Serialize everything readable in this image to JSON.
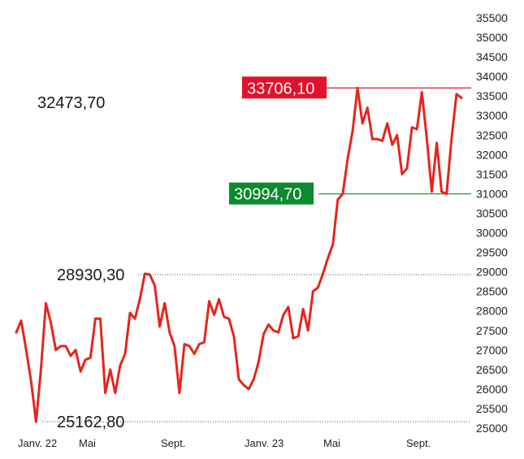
{
  "chart_data": {
    "type": "line",
    "title": "",
    "xlabel": "",
    "ylabel": "",
    "ylim": [
      25000,
      35500
    ],
    "y_ticks": [
      "35500",
      "35000",
      "34500",
      "34000",
      "33500",
      "33000",
      "32500",
      "32000",
      "31500",
      "31000",
      "30500",
      "30000",
      "29500",
      "29000",
      "28500",
      "28000",
      "27500",
      "27000",
      "26500",
      "26000",
      "25500",
      "25000"
    ],
    "x_tick_labels": [
      "Janv. 22",
      "Mai",
      "Sept.",
      "Janv. 23",
      "Mai",
      "Sept."
    ],
    "series": [
      {
        "values": [
          27450,
          27750,
          27000,
          26200,
          25162.8,
          26500,
          28200,
          27700,
          27000,
          27100,
          27100,
          26850,
          27000,
          26450,
          26750,
          26800,
          27800,
          27800,
          25900,
          26500,
          25900,
          26600,
          26900,
          27950,
          27800,
          28300,
          28950,
          28930.3,
          28650,
          27600,
          28200,
          27450,
          27100,
          25900,
          27150,
          27100,
          26900,
          27150,
          27200,
          28250,
          27900,
          28300,
          27850,
          27800,
          27350,
          26250,
          26100,
          26000,
          26250,
          26700,
          27400,
          27650,
          27500,
          27450,
          27900,
          28100,
          27300,
          27350,
          28050,
          27500,
          28500,
          28600,
          28950,
          29350,
          29700,
          30850,
          30994.7,
          31900,
          32600,
          33706.1,
          32800,
          33200,
          32400,
          32400,
          32350,
          32800,
          32250,
          32500,
          31500,
          31650,
          32700,
          32650,
          33600,
          32400,
          31050,
          32300,
          31050,
          30994.7,
          32400,
          33550,
          33450
        ]
      }
    ],
    "annotations": [
      {
        "label": "32473,70",
        "value": 32473.7,
        "style": "plain"
      },
      {
        "label": "28930,30",
        "value": 28930.3,
        "style": "dotted-line"
      },
      {
        "label": "25162,80",
        "value": 25162.8,
        "style": "dotted-line"
      },
      {
        "label": "33706,10",
        "value": 33706.1,
        "style": "red-box",
        "color": "#e3102b"
      },
      {
        "label": "30994,70",
        "value": 30994.7,
        "style": "green-box",
        "color": "#0b8a2e"
      }
    ],
    "line_color": "#e3261d",
    "grid": false
  }
}
